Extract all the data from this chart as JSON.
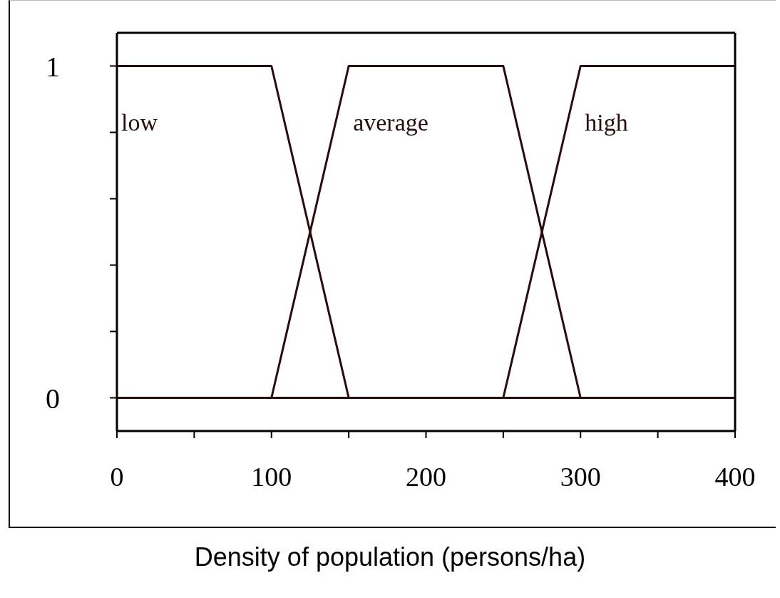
{
  "chart_data": {
    "type": "line",
    "xlabel": "Density of population (persons/ha)",
    "series": [
      {
        "name": "low",
        "color": "#2b0b0b",
        "x": [
          0,
          100,
          150,
          400
        ],
        "values": [
          1,
          1,
          0,
          0
        ]
      },
      {
        "name": "average",
        "color": "#2b0b0b",
        "x": [
          0,
          100,
          150,
          250,
          300,
          400
        ],
        "values": [
          0,
          0,
          1,
          1,
          0,
          0
        ]
      },
      {
        "name": "high",
        "color": "#2b0b0b",
        "x": [
          0,
          250,
          300,
          400
        ],
        "values": [
          0,
          0,
          1,
          1
        ]
      }
    ],
    "xlim": [
      0,
      400
    ],
    "xticks": [
      0,
      {
        "value": 50,
        "label": null
      },
      100,
      {
        "value": 150,
        "label": null
      },
      200,
      {
        "value": 250,
        "label": null
      },
      300,
      {
        "value": 350,
        "label": null
      },
      400
    ],
    "ylim": [
      -0.1,
      1.1
    ],
    "yticks": [
      0,
      {
        "value": 0.2,
        "label": null
      },
      {
        "value": 0.4,
        "label": null
      },
      {
        "value": 0.6,
        "label": null
      },
      {
        "value": 0.8,
        "label": null
      },
      1
    ],
    "legend": false,
    "marker": "none",
    "line_style": "solid"
  }
}
